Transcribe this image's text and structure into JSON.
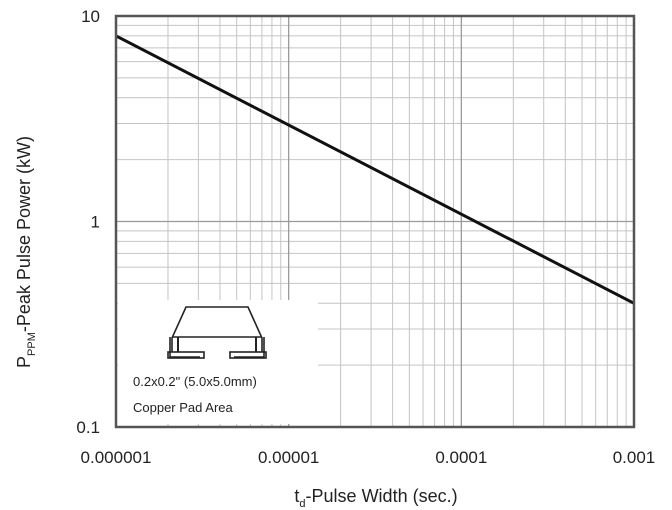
{
  "chart_data": {
    "type": "line",
    "x_scale": "log",
    "y_scale": "log",
    "xlim": [
      1e-06,
      0.001
    ],
    "ylim": [
      0.1,
      10
    ],
    "x_ticks": [
      1e-06,
      1e-05,
      0.0001,
      0.001
    ],
    "x_tick_labels": [
      "0.000001",
      "0.00001",
      "0.0001",
      "0.001"
    ],
    "y_ticks": [
      0.1,
      1,
      10
    ],
    "y_tick_labels": [
      "0.1",
      "1",
      "10"
    ],
    "xlabel": {
      "prefix": "t",
      "subscript": "d",
      "suffix": "-Pulse Width (sec.)"
    },
    "ylabel": {
      "prefix": "P",
      "subscript": "PPM",
      "suffix": "-Peak Pulse Power (kW)"
    },
    "grid": true,
    "series": [
      {
        "x": [
          1e-06,
          0.001
        ],
        "y": [
          8.0,
          0.4
        ]
      }
    ],
    "annotation": {
      "line1": "0.2x0.2\" (5.0x5.0mm)",
      "line2": "Copper Pad Area"
    }
  }
}
